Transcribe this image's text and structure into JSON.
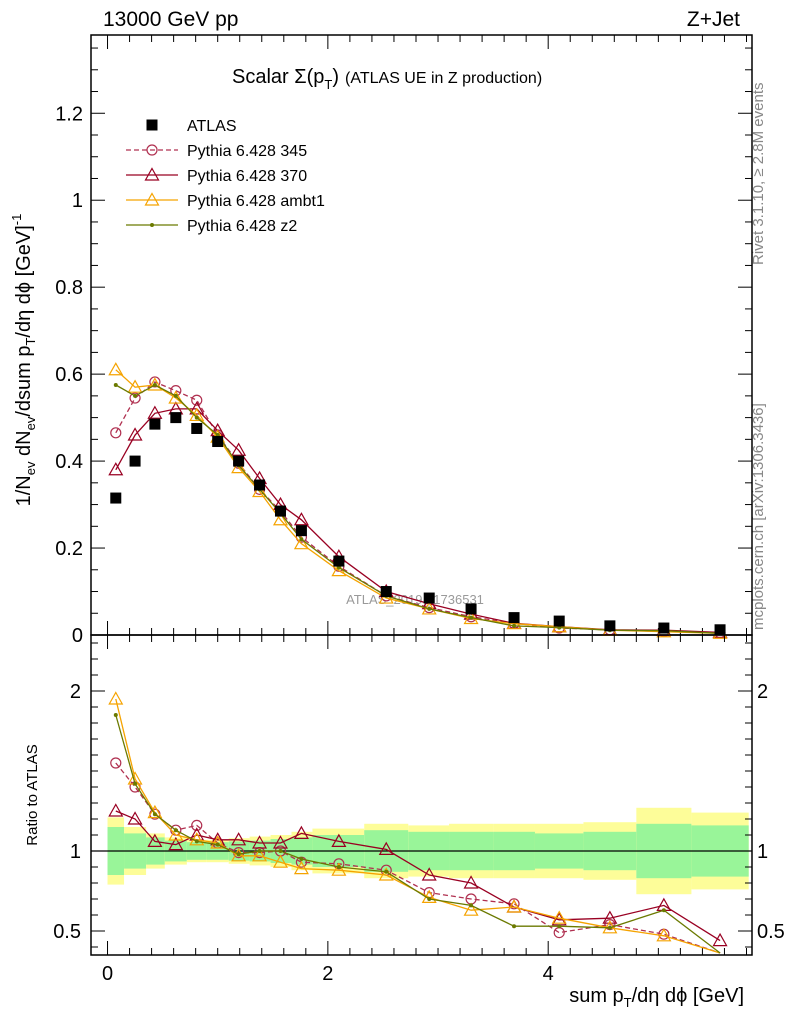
{
  "header": {
    "energy": "13000 GeV pp",
    "process": "Z+Jet"
  },
  "side_labels": {
    "rivet": "Rivet 3.1.10, ≥ 2.8M events",
    "mcplots": "mcplots.cern.ch [arXiv:1306.3436]"
  },
  "chart_data": [
    {
      "type": "scatter",
      "title": "Scalar Σ(p_T) (ATLAS UE in Z production)",
      "xlabel": "sum p_T/dη dφ [GeV]",
      "ylabel": "1/N_ev dN_ev/dsum p_T/dη dφ [GeV]^-1",
      "xlim": [
        -0.15,
        5.85
      ],
      "ylim": [
        0,
        1.38
      ],
      "x_ticks": [
        0,
        2,
        4
      ],
      "y_ticks": [
        0,
        0.2,
        0.4,
        0.6,
        0.8,
        1,
        1.2
      ],
      "y_tick_labels": [
        "0",
        "0.2",
        "0.4",
        "0.6",
        "0.8",
        "1",
        "1.2"
      ],
      "watermark": "ATLAS_2019_I1736531",
      "legend_position": "top-left",
      "x": [
        0.075,
        0.25,
        0.43,
        0.62,
        0.81,
        1.0,
        1.19,
        1.38,
        1.57,
        1.76,
        2.1,
        2.53,
        2.92,
        3.3,
        3.69,
        4.1,
        4.56,
        5.05,
        5.56
      ],
      "series": [
        {
          "name": "ATLAS",
          "color": "#000000",
          "marker": "square",
          "line": "none",
          "values": [
            0.315,
            0.4,
            0.485,
            0.5,
            0.475,
            0.445,
            0.4,
            0.345,
            0.285,
            0.24,
            0.17,
            0.1,
            0.085,
            0.06,
            0.04,
            0.032,
            0.021,
            0.016,
            0.012
          ]
        },
        {
          "name": "Pythia 6.428 345",
          "color": "#b03050",
          "marker": "circle",
          "line": "dashed",
          "values": [
            0.465,
            0.545,
            0.582,
            0.562,
            0.54,
            0.46,
            0.395,
            0.335,
            0.285,
            0.225,
            0.158,
            0.09,
            0.063,
            0.042,
            0.027,
            0.016,
            0.012,
            0.008,
            0.005
          ]
        },
        {
          "name": "Pythia 6.428 370",
          "color": "#990022",
          "marker": "triangle",
          "line": "solid",
          "values": [
            0.38,
            0.46,
            0.51,
            0.52,
            0.52,
            0.47,
            0.425,
            0.36,
            0.3,
            0.265,
            0.18,
            0.1,
            0.072,
            0.048,
            0.027,
            0.019,
            0.012,
            0.011,
            0.006
          ]
        },
        {
          "name": "Pythia 6.428 ambt1",
          "color": "#f5a300",
          "marker": "triangle",
          "line": "solid",
          "values": [
            0.61,
            0.57,
            0.575,
            0.545,
            0.505,
            0.455,
            0.385,
            0.33,
            0.265,
            0.21,
            0.148,
            0.085,
            0.06,
            0.038,
            0.026,
            0.019,
            0.011,
            0.0075,
            0.004
          ]
        },
        {
          "name": "Pythia 6.428 z2",
          "color": "#6b7a00",
          "marker": "dot",
          "line": "solid",
          "values": [
            0.575,
            0.55,
            0.575,
            0.55,
            0.5,
            0.46,
            0.39,
            0.335,
            0.28,
            0.22,
            0.155,
            0.09,
            0.06,
            0.04,
            0.021,
            0.017,
            0.011,
            0.01,
            0.004
          ]
        }
      ]
    },
    {
      "type": "line",
      "ylabel": "Ratio to ATLAS",
      "xlabel": "sum p_T/dη dφ [GeV]",
      "xlim": [
        -0.15,
        5.85
      ],
      "ylim": [
        0.35,
        2.35
      ],
      "x_ticks": [
        0,
        2,
        4
      ],
      "x_tick_labels": [
        "0",
        "2",
        "4"
      ],
      "y_ticks": [
        0.5,
        1,
        2
      ],
      "y_tick_labels": [
        "0.5",
        "1",
        "2"
      ],
      "x": [
        0.075,
        0.25,
        0.43,
        0.62,
        0.81,
        1.0,
        1.19,
        1.38,
        1.57,
        1.76,
        2.1,
        2.53,
        2.92,
        3.3,
        3.69,
        4.1,
        4.56,
        5.05,
        5.56
      ],
      "bins": [
        0,
        0.15,
        0.35,
        0.52,
        0.72,
        0.9,
        1.1,
        1.29,
        1.48,
        1.67,
        1.86,
        2.33,
        2.73,
        3.1,
        3.5,
        3.88,
        4.32,
        4.8,
        5.3,
        5.82
      ],
      "band_inner": [
        0.15,
        0.11,
        0.085,
        0.065,
        0.055,
        0.055,
        0.06,
        0.065,
        0.075,
        0.085,
        0.1,
        0.13,
        0.12,
        0.12,
        0.12,
        0.11,
        0.12,
        0.17,
        0.16
      ],
      "band_outer": [
        0.21,
        0.15,
        0.11,
        0.085,
        0.07,
        0.07,
        0.08,
        0.09,
        0.1,
        0.12,
        0.14,
        0.17,
        0.16,
        0.17,
        0.17,
        0.17,
        0.18,
        0.27,
        0.24
      ],
      "series": [
        {
          "name": "Pythia 6.428 345",
          "color": "#b03050",
          "marker": "circle",
          "line": "dashed",
          "values": [
            1.55,
            1.4,
            1.23,
            1.13,
            1.16,
            1.05,
            0.99,
            0.99,
            1.0,
            0.93,
            0.92,
            0.88,
            0.74,
            0.7,
            0.67,
            0.49,
            0.54,
            0.48,
            0.32
          ]
        },
        {
          "name": "Pythia 6.428 370",
          "color": "#990022",
          "marker": "triangle",
          "line": "solid",
          "values": [
            1.25,
            1.2,
            1.06,
            1.04,
            1.1,
            1.07,
            1.07,
            1.05,
            1.05,
            1.11,
            1.06,
            1.01,
            0.85,
            0.8,
            0.65,
            0.57,
            0.58,
            0.66,
            0.44
          ]
        },
        {
          "name": "Pythia 6.428 ambt1",
          "color": "#f5a300",
          "marker": "triangle",
          "line": "solid",
          "values": [
            1.95,
            1.45,
            1.24,
            1.1,
            1.07,
            1.05,
            0.97,
            0.97,
            0.93,
            0.89,
            0.88,
            0.85,
            0.71,
            0.63,
            0.65,
            0.58,
            0.52,
            0.47,
            0.33
          ]
        },
        {
          "name": "Pythia 6.428 z2",
          "color": "#6b7a00",
          "marker": "dot",
          "line": "solid",
          "values": [
            1.85,
            1.42,
            1.23,
            1.13,
            1.06,
            1.04,
            0.98,
            1.0,
            1.0,
            0.95,
            0.9,
            0.87,
            0.7,
            0.66,
            0.53,
            0.53,
            0.52,
            0.63,
            0.34
          ]
        }
      ]
    }
  ]
}
